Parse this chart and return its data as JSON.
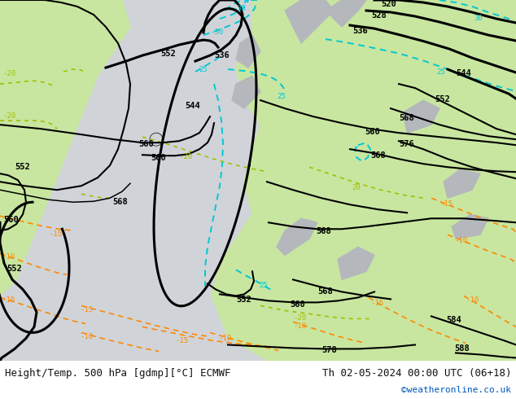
{
  "title_left": "Height/Temp. 500 hPa [gdmp][°C] ECMWF",
  "title_right": "Th 02-05-2024 00:00 UTC (06+18)",
  "credit": "©weatheronline.co.uk",
  "ocean_color": "#d0d4d8",
  "land_green": "#c8e6a0",
  "land_gray": "#b4b8bc",
  "black": "#000000",
  "cyan": "#00c8d4",
  "orange": "#ff8800",
  "ylgreen": "#a0c000",
  "red": "#cc0000",
  "footer_bg": "#ffffff",
  "lw_thick": 2.2,
  "lw_mid": 1.5,
  "lw_thin": 1.1,
  "fs_label": 7.5,
  "fs_footer": 9,
  "fs_credit": 8
}
